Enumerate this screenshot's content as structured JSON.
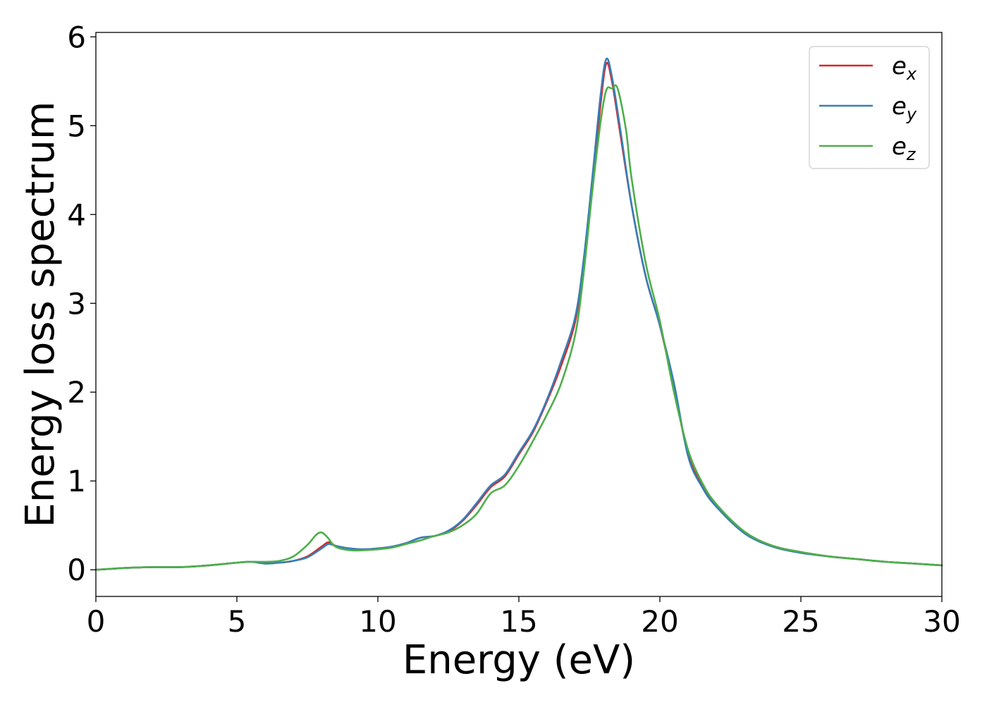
{
  "chart_data": {
    "type": "line",
    "title": "",
    "xlabel": "Energy (eV)",
    "ylabel": "Energy loss spectrum",
    "xlim": [
      0,
      30
    ],
    "ylim": [
      -0.3,
      6.05
    ],
    "xticks": [
      0,
      5,
      10,
      15,
      20,
      25,
      30
    ],
    "yticks": [
      0,
      1,
      2,
      3,
      4,
      5,
      6
    ],
    "grid": false,
    "legend_position": "top-right",
    "series": [
      {
        "name": "e_x",
        "label_main": "e",
        "label_sub": "x",
        "color": "#d62728",
        "x": [
          0,
          0.5,
          1,
          2,
          3,
          4,
          5,
          5.5,
          6,
          6.5,
          7,
          7.5,
          8,
          8.25,
          8.5,
          9,
          9.5,
          10,
          10.5,
          11,
          11.5,
          12,
          12.5,
          13,
          13.5,
          14,
          14.5,
          15,
          15.5,
          16,
          16.5,
          17,
          17.3,
          17.6,
          17.9,
          18.1,
          18.3,
          18.6,
          19,
          19.5,
          20,
          20.5,
          21,
          21.5,
          22,
          23,
          24,
          25,
          26,
          27,
          28,
          29,
          30
        ],
        "y": [
          0.0,
          0.01,
          0.02,
          0.03,
          0.03,
          0.05,
          0.08,
          0.09,
          0.08,
          0.08,
          0.1,
          0.15,
          0.26,
          0.31,
          0.27,
          0.24,
          0.23,
          0.24,
          0.26,
          0.3,
          0.36,
          0.38,
          0.43,
          0.55,
          0.73,
          0.93,
          1.05,
          1.3,
          1.55,
          1.9,
          2.3,
          2.8,
          3.45,
          4.3,
          5.25,
          5.7,
          5.5,
          4.9,
          4.1,
          3.3,
          2.75,
          2.05,
          1.3,
          0.95,
          0.72,
          0.42,
          0.27,
          0.2,
          0.15,
          0.12,
          0.09,
          0.07,
          0.05
        ]
      },
      {
        "name": "e_y",
        "label_main": "e",
        "label_sub": "y",
        "color": "#377eb8",
        "x": [
          0,
          0.5,
          1,
          2,
          3,
          4,
          5,
          5.5,
          6,
          6.5,
          7,
          7.5,
          8,
          8.25,
          8.5,
          9,
          9.5,
          10,
          10.5,
          11,
          11.5,
          12,
          12.5,
          13,
          13.5,
          14,
          14.5,
          15,
          15.5,
          16,
          16.5,
          17,
          17.3,
          17.6,
          17.9,
          18.1,
          18.3,
          18.6,
          19,
          19.5,
          20,
          20.5,
          21,
          21.5,
          22,
          23,
          24,
          25,
          26,
          27,
          28,
          29,
          30
        ],
        "y": [
          0.0,
          0.01,
          0.02,
          0.03,
          0.03,
          0.05,
          0.08,
          0.09,
          0.07,
          0.08,
          0.1,
          0.14,
          0.24,
          0.29,
          0.27,
          0.24,
          0.23,
          0.24,
          0.26,
          0.3,
          0.36,
          0.38,
          0.44,
          0.56,
          0.75,
          0.95,
          1.07,
          1.32,
          1.57,
          1.92,
          2.35,
          2.85,
          3.5,
          4.4,
          5.35,
          5.75,
          5.55,
          4.95,
          4.1,
          3.3,
          2.75,
          2.1,
          1.28,
          0.93,
          0.71,
          0.41,
          0.26,
          0.19,
          0.15,
          0.12,
          0.09,
          0.07,
          0.05
        ]
      },
      {
        "name": "e_z",
        "label_main": "e",
        "label_sub": "z",
        "color": "#4daf4a",
        "x": [
          0,
          0.5,
          1,
          2,
          3,
          4,
          5,
          5.5,
          6,
          6.5,
          7,
          7.5,
          7.8,
          8,
          8.2,
          8.5,
          9,
          9.5,
          10,
          10.5,
          11,
          11.5,
          12,
          12.5,
          13,
          13.5,
          14,
          14.5,
          15,
          15.5,
          16,
          16.5,
          17,
          17.3,
          17.6,
          17.9,
          18.1,
          18.3,
          18.5,
          18.8,
          19,
          19.5,
          20,
          20.5,
          21,
          21.5,
          22,
          23,
          24,
          25,
          26,
          27,
          28,
          29,
          30
        ],
        "y": [
          0.0,
          0.01,
          0.02,
          0.03,
          0.03,
          0.05,
          0.08,
          0.09,
          0.09,
          0.1,
          0.15,
          0.28,
          0.39,
          0.42,
          0.37,
          0.26,
          0.22,
          0.22,
          0.23,
          0.25,
          0.29,
          0.33,
          0.38,
          0.42,
          0.5,
          0.63,
          0.86,
          0.95,
          1.17,
          1.45,
          1.75,
          2.1,
          2.65,
          3.35,
          4.25,
          5.05,
          5.4,
          5.42,
          5.42,
          4.95,
          4.4,
          3.45,
          2.8,
          2.0,
          1.35,
          0.98,
          0.74,
          0.43,
          0.27,
          0.2,
          0.15,
          0.12,
          0.09,
          0.07,
          0.05
        ]
      }
    ]
  }
}
